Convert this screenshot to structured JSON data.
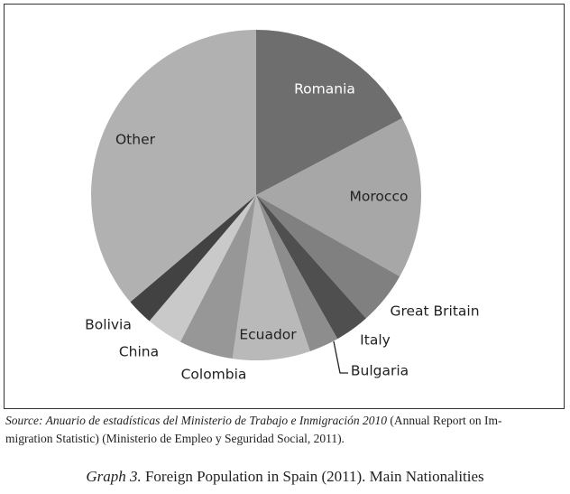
{
  "chart_data": {
    "type": "pie",
    "categories": [
      "Romania",
      "Morocco",
      "Great Britain",
      "Italy",
      "Bulgaria",
      "Ecuador",
      "Colombia",
      "China",
      "Bolivia",
      "Other"
    ],
    "values": [
      17.3,
      15.9,
      5.2,
      3.4,
      2.9,
      7.6,
      5.3,
      3.6,
      2.6,
      36.2
    ],
    "colors": [
      "#6e6e6e",
      "#a7a7a7",
      "#808080",
      "#4f4f4f",
      "#8d8d8d",
      "#b9b9b9",
      "#979797",
      "#c9c9c9",
      "#424242",
      "#b1b1b1"
    ]
  },
  "source": {
    "italic": "Source: Anuario de estadísticas del Ministerio de Trabajo e Inmigración 2010",
    "line1": "(Annual Report on Im-",
    "line2": "migration Statistic) (Ministerio de Empleo y Seguridad Social, 2011)."
  },
  "caption": {
    "italic": "Graph 3.",
    "text": "Foreign Population in Spain (2011). Main Nationalities"
  }
}
